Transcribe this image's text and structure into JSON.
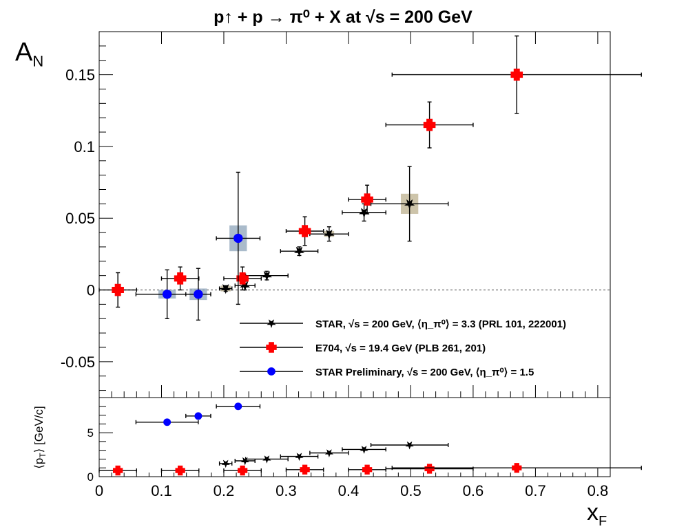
{
  "chart_data": [
    {
      "type": "scatter",
      "title": "p↑ + p → π⁰ + X at √s = 200 GeV",
      "ylabel": "A_N",
      "xlabel": "x_F",
      "xlim": [
        0,
        0.82
      ],
      "ylim": [
        -0.075,
        0.18
      ],
      "x_ticks": [
        "0",
        "0.1",
        "0.2",
        "0.3",
        "0.4",
        "0.5",
        "0.6",
        "0.7",
        "0.8"
      ],
      "y_ticks": [
        "-0.05",
        "0",
        "0.05",
        "0.1",
        "0.15"
      ],
      "reference_line": 0,
      "grid": false,
      "legend_position": "bottom-right",
      "series": [
        {
          "name": "STAR, √s = 200 GeV, ⟨η_π⁰⟩ = 3.3 (PRL 101, 222001)",
          "color": "#000000",
          "marker": "star",
          "points": [
            {
              "x": 0.203,
              "y": 0.001,
              "x_err": 0.01,
              "y_err": 0.002
            },
            {
              "x": 0.234,
              "y": 0.003,
              "x_err": 0.016,
              "y_err": 0.003
            },
            {
              "x": 0.269,
              "y": 0.01,
              "x_err": 0.034,
              "y_err": 0.003
            },
            {
              "x": 0.321,
              "y": 0.027,
              "x_err": 0.03,
              "y_err": 0.003
            },
            {
              "x": 0.369,
              "y": 0.039,
              "x_err": 0.031,
              "y_err": 0.005
            },
            {
              "x": 0.425,
              "y": 0.054,
              "x_err": 0.035,
              "y_err": 0.006
            },
            {
              "x": 0.498,
              "y": 0.06,
              "x_err": 0.062,
              "y_err": 0.026
            }
          ],
          "sys_boxes": [
            {
              "x": 0.203,
              "y": 0.001,
              "half_width": 0.008,
              "half_height": 0.002
            },
            {
              "x": 0.369,
              "y": 0.039,
              "half_width": 0.008,
              "half_height": 0.002
            },
            {
              "x": 0.498,
              "y": 0.06,
              "half_width": 0.014,
              "half_height": 0.007
            }
          ]
        },
        {
          "name": "E704, √s = 19.4 GeV (PLB 261, 201)",
          "color": "#ff0000",
          "marker": "cross",
          "points": [
            {
              "x": 0.03,
              "y": 0.0,
              "x_err": 0.03,
              "y_err": 0.012
            },
            {
              "x": 0.13,
              "y": 0.008,
              "x_err": 0.03,
              "y_err": 0.008
            },
            {
              "x": 0.23,
              "y": 0.008,
              "x_err": 0.03,
              "y_err": 0.008
            },
            {
              "x": 0.33,
              "y": 0.041,
              "x_err": 0.03,
              "y_err": 0.01
            },
            {
              "x": 0.43,
              "y": 0.063,
              "x_err": 0.03,
              "y_err": 0.01
            },
            {
              "x": 0.53,
              "y": 0.115,
              "x_err": 0.07,
              "y_err": 0.016
            },
            {
              "x": 0.67,
              "y": 0.15,
              "x_err": 0.2,
              "y_err": 0.027
            }
          ]
        },
        {
          "name": "STAR Preliminary, √s = 200 GeV, ⟨η_π⁰⟩ = 1.5",
          "color": "#0000ff",
          "marker": "circle",
          "points": [
            {
              "x": 0.109,
              "y": -0.003,
              "x_err": 0.05,
              "y_err": 0.017
            },
            {
              "x": 0.159,
              "y": -0.003,
              "x_err": 0.02,
              "y_err": 0.018
            },
            {
              "x": 0.223,
              "y": 0.036,
              "x_err": 0.035,
              "y_err": 0.046
            }
          ],
          "sys_boxes": [
            {
              "x": 0.109,
              "y": -0.003,
              "half_width": 0.014,
              "half_height": 0.003
            },
            {
              "x": 0.159,
              "y": -0.003,
              "half_width": 0.014,
              "half_height": 0.004
            },
            {
              "x": 0.223,
              "y": 0.036,
              "half_width": 0.014,
              "half_height": 0.009
            }
          ]
        }
      ]
    },
    {
      "type": "scatter",
      "ylabel": "⟨p_T⟩ [GeV/c]",
      "xlabel": "x_F",
      "xlim": [
        0,
        0.82
      ],
      "ylim": [
        0,
        9
      ],
      "y_ticks": [
        "0",
        "5"
      ],
      "x_ticks": [
        "0",
        "0.1",
        "0.2",
        "0.3",
        "0.4",
        "0.5",
        "0.6",
        "0.7",
        "0.8"
      ],
      "series": [
        {
          "name": "STAR, √s = 200 GeV, ⟨η_π⁰⟩ = 3.3 (PRL 101, 222001)",
          "color": "#000000",
          "marker": "star",
          "points": [
            {
              "x": 0.203,
              "y": 1.5,
              "x_err": 0.01
            },
            {
              "x": 0.234,
              "y": 1.8,
              "x_err": 0.016
            },
            {
              "x": 0.269,
              "y": 2.0,
              "x_err": 0.034
            },
            {
              "x": 0.321,
              "y": 2.3,
              "x_err": 0.03
            },
            {
              "x": 0.369,
              "y": 2.7,
              "x_err": 0.031
            },
            {
              "x": 0.425,
              "y": 3.1,
              "x_err": 0.035
            },
            {
              "x": 0.498,
              "y": 3.6,
              "x_err": 0.062
            }
          ]
        },
        {
          "name": "E704, √s = 19.4 GeV (PLB 261, 201)",
          "color": "#ff0000",
          "marker": "cross",
          "points": [
            {
              "x": 0.03,
              "y": 0.7,
              "x_err": 0.03
            },
            {
              "x": 0.13,
              "y": 0.7,
              "x_err": 0.03
            },
            {
              "x": 0.23,
              "y": 0.7,
              "x_err": 0.03
            },
            {
              "x": 0.33,
              "y": 0.8,
              "x_err": 0.03
            },
            {
              "x": 0.43,
              "y": 0.8,
              "x_err": 0.03
            },
            {
              "x": 0.53,
              "y": 0.9,
              "x_err": 0.07
            },
            {
              "x": 0.67,
              "y": 1.0,
              "x_err": 0.2
            }
          ]
        },
        {
          "name": "STAR Preliminary, √s = 200 GeV, ⟨η_π⁰⟩ = 1.5",
          "color": "#0000ff",
          "marker": "circle",
          "points": [
            {
              "x": 0.109,
              "y": 6.2,
              "x_err": 0.05
            },
            {
              "x": 0.159,
              "y": 6.9,
              "x_err": 0.02
            },
            {
              "x": 0.223,
              "y": 8.0,
              "x_err": 0.035
            }
          ]
        }
      ]
    }
  ]
}
